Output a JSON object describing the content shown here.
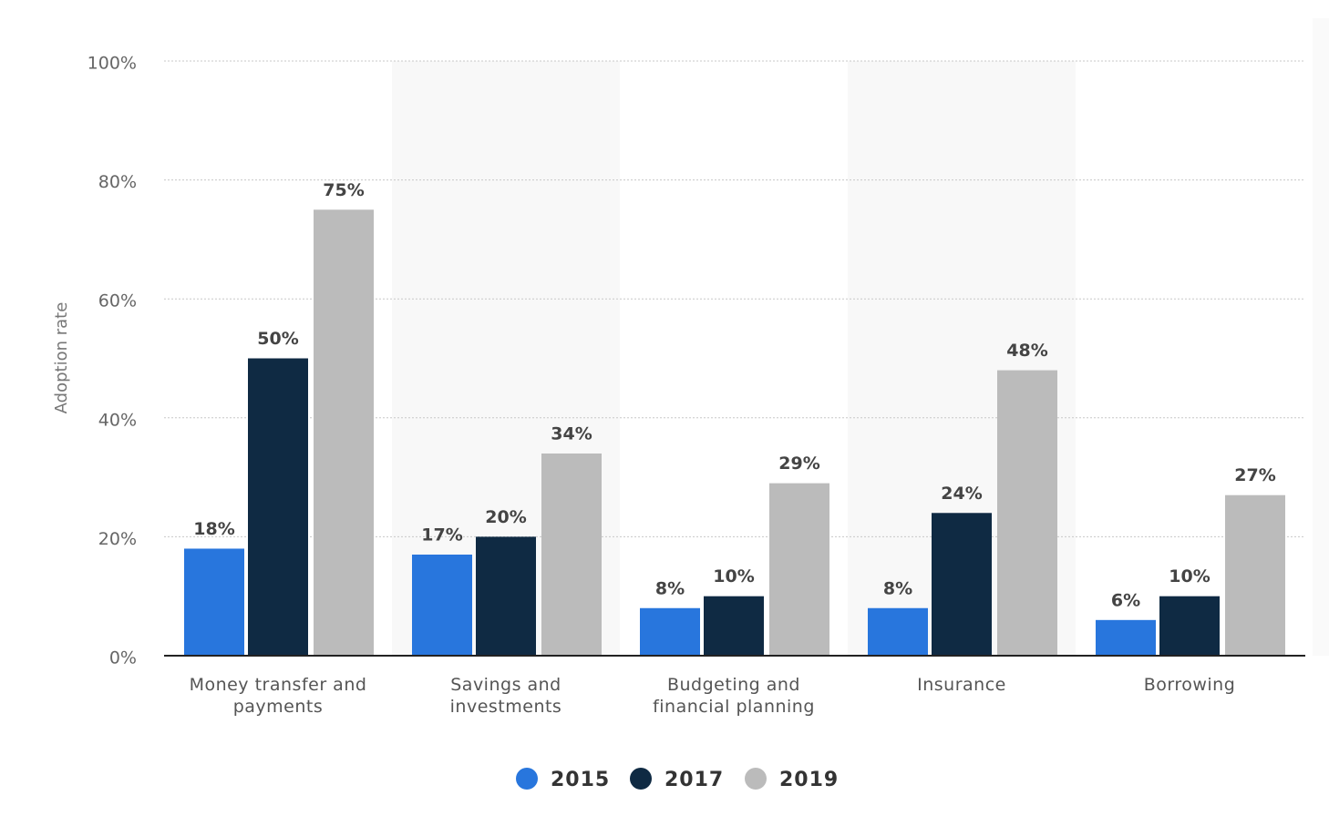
{
  "chart_data": {
    "type": "bar",
    "y_axis_label": "Adoption rate",
    "categories": [
      "Money transfer and payments",
      "Savings and investments",
      "Budgeting and financial planning",
      "Insurance",
      "Borrowing"
    ],
    "series": [
      {
        "name": "2015",
        "color": "#2876dd",
        "values": [
          18,
          17,
          8,
          8,
          6
        ],
        "value_labels": [
          "18%",
          "17%",
          "8%",
          "8%",
          "6%"
        ]
      },
      {
        "name": "2017",
        "color": "#0f2a43",
        "values": [
          50,
          20,
          10,
          24,
          10
        ],
        "value_labels": [
          "50%",
          "20%",
          "10%",
          "24%",
          "10%"
        ]
      },
      {
        "name": "2019",
        "color": "#bbbbbb",
        "values": [
          75,
          34,
          29,
          48,
          27
        ],
        "value_labels": [
          "75%",
          "34%",
          "29%",
          "48%",
          "27%"
        ]
      }
    ],
    "ylim": [
      0,
      100
    ],
    "yticks": [
      {
        "value": 0,
        "label": "0%"
      },
      {
        "value": 20,
        "label": "20%"
      },
      {
        "value": 40,
        "label": "40%"
      },
      {
        "value": 60,
        "label": "60%"
      },
      {
        "value": 80,
        "label": "80%"
      },
      {
        "value": 100,
        "label": "100%"
      }
    ],
    "grid": true,
    "legend": "bottom"
  }
}
